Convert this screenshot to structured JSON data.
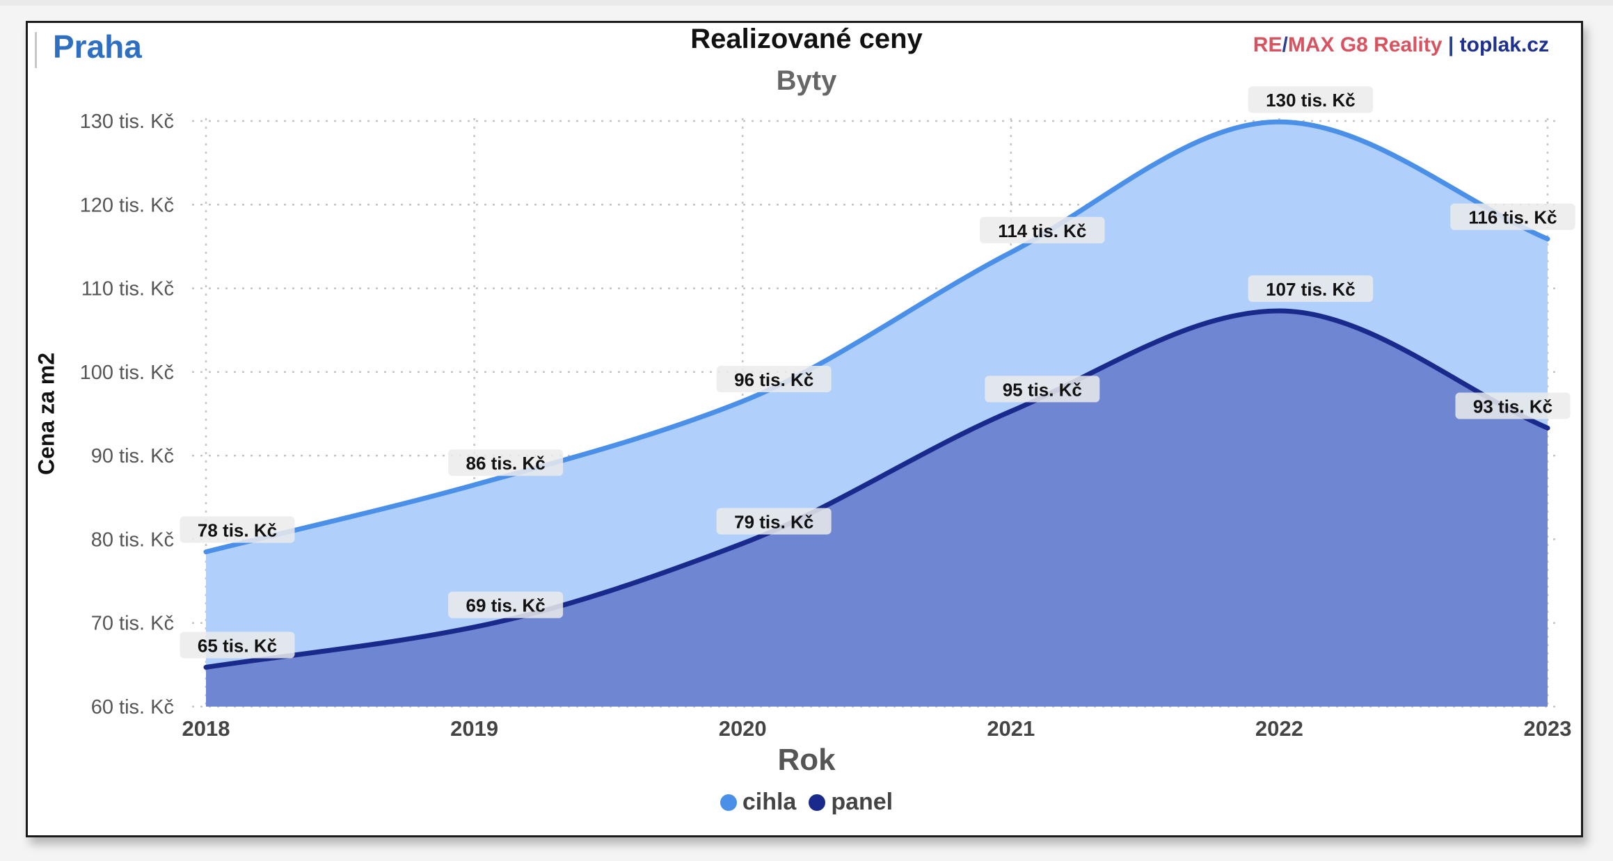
{
  "header": {
    "city": "Praha",
    "brand_re": "RE",
    "brand_slash": "/",
    "brand_max": "MAX G8 Reality",
    "brand_sep": " | ",
    "brand_site": "toplak.cz"
  },
  "chart_data": {
    "type": "area",
    "title": "Realizované ceny",
    "subtitle": "Byty",
    "xlabel": "Rok",
    "ylabel": "Cena za m2",
    "x": [
      "2018",
      "2019",
      "2020",
      "2021",
      "2022",
      "2023"
    ],
    "ylim": [
      60,
      130
    ],
    "yticks": [
      60,
      70,
      80,
      90,
      100,
      110,
      120,
      130
    ],
    "ytick_suffix": " tis. Kč",
    "grid": true,
    "legend_position": "bottom-center",
    "series": [
      {
        "name": "cihla",
        "values": [
          78.5,
          86.5,
          96.5,
          114.3,
          129.9,
          115.9
        ],
        "labels": [
          "78 tis. Kč",
          "86 tis. Kč",
          "96 tis. Kč",
          "114 tis. Kč",
          "130 tis. Kč",
          "116 tis. Kč"
        ],
        "line_color": "#4a90e8",
        "fill_color": "#b0d0fb"
      },
      {
        "name": "panel",
        "values": [
          64.7,
          69.5,
          79.5,
          95.3,
          107.3,
          93.3
        ],
        "labels": [
          "65 tis. Kč",
          "69 tis. Kč",
          "79 tis. Kč",
          "95 tis. Kč",
          "107 tis. Kč",
          "93 tis. Kč"
        ],
        "line_color": "#1a2a8c",
        "fill_color": "#6f86d2"
      }
    ]
  }
}
